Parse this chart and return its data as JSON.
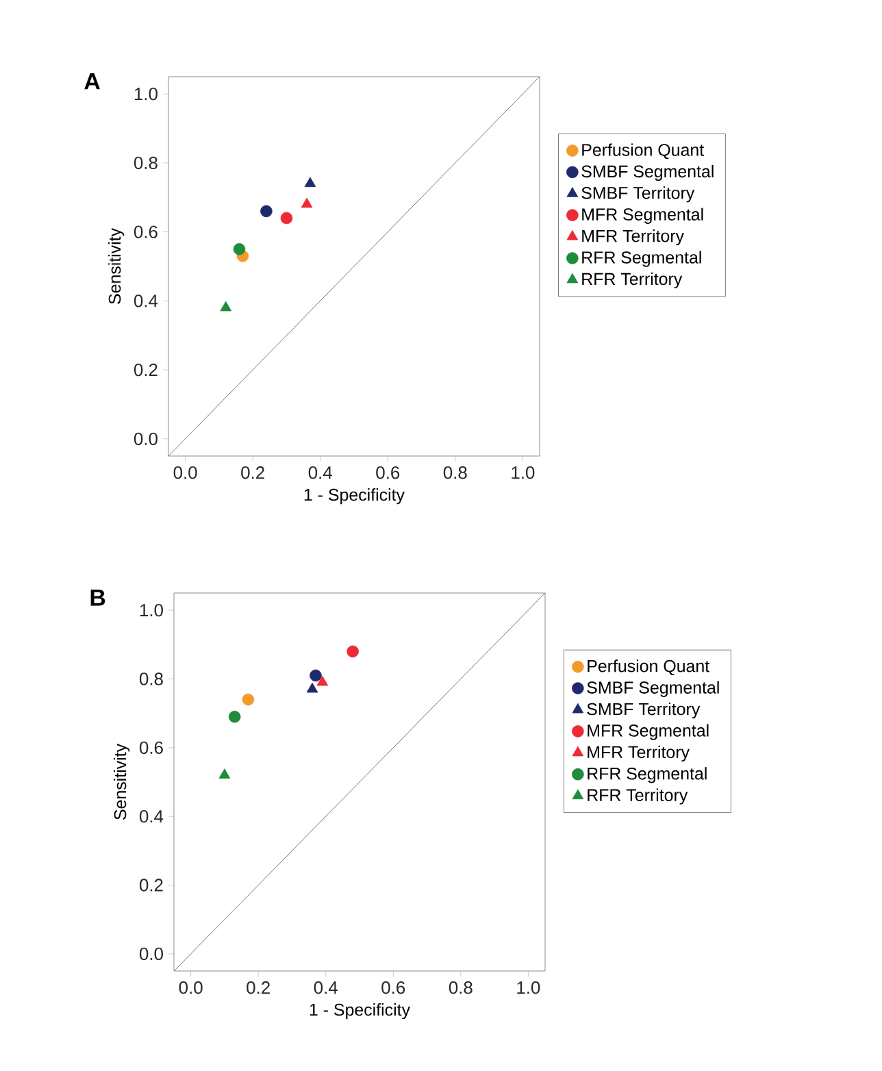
{
  "chart_data": [
    {
      "type": "scatter",
      "title": "A",
      "xlabel": "1 - Specificity",
      "ylabel": "Sensitivity",
      "xlim": [
        -0.05,
        1.05
      ],
      "ylim": [
        -0.05,
        1.05
      ],
      "xticks": [
        {
          "value": 0,
          "label": "0.0"
        },
        {
          "value": 0.2,
          "label": "0.2"
        },
        {
          "value": 0.4,
          "label": "0.4"
        },
        {
          "value": 0.6,
          "label": "0.6"
        },
        {
          "value": 0.8,
          "label": "0.8"
        },
        {
          "value": 1,
          "label": "1.0"
        }
      ],
      "yticks": [
        {
          "value": 0,
          "label": "0.0"
        },
        {
          "value": 0.2,
          "label": "0.2"
        },
        {
          "value": 0.4,
          "label": "0.4"
        },
        {
          "value": 0.6,
          "label": "0.6"
        },
        {
          "value": 0.8,
          "label": "0.8"
        },
        {
          "value": 1,
          "label": "1.0"
        }
      ],
      "legend": "right",
      "grid": false,
      "series": [
        {
          "name": "Perfusion Quant",
          "color": "#f39a2b",
          "marker": "circle",
          "x": [
            0.17
          ],
          "values": [
            0.53
          ]
        },
        {
          "name": "SMBF Segmental",
          "color": "#1f2a6e",
          "marker": "circle",
          "x": [
            0.24
          ],
          "values": [
            0.66
          ]
        },
        {
          "name": "SMBF Territory",
          "color": "#1f2a6e",
          "marker": "triangle",
          "x": [
            0.37
          ],
          "values": [
            0.74
          ]
        },
        {
          "name": "MFR Segmental",
          "color": "#ee2a36",
          "marker": "circle",
          "x": [
            0.3
          ],
          "values": [
            0.64
          ]
        },
        {
          "name": "MFR Territory",
          "color": "#ee2a36",
          "marker": "triangle",
          "x": [
            0.36
          ],
          "values": [
            0.68
          ]
        },
        {
          "name": "RFR Segmental",
          "color": "#1e8c3a",
          "marker": "circle",
          "x": [
            0.16
          ],
          "values": [
            0.55
          ]
        },
        {
          "name": "RFR Territory",
          "color": "#1e8c3a",
          "marker": "triangle",
          "x": [
            0.12
          ],
          "values": [
            0.38
          ]
        },
        {
          "type": "line",
          "color": "#555555",
          "marker": "none",
          "x": [
            -0.05,
            1.05
          ],
          "values": [
            -0.05,
            1.05
          ]
        }
      ]
    },
    {
      "type": "scatter",
      "title": "B",
      "xlabel": "1 - Specificity",
      "ylabel": "Sensitivity",
      "xlim": [
        -0.05,
        1.05
      ],
      "ylim": [
        -0.05,
        1.05
      ],
      "xticks": [
        {
          "value": 0,
          "label": "0.0"
        },
        {
          "value": 0.2,
          "label": "0.2"
        },
        {
          "value": 0.4,
          "label": "0.4"
        },
        {
          "value": 0.6,
          "label": "0.6"
        },
        {
          "value": 0.8,
          "label": "0.8"
        },
        {
          "value": 1,
          "label": "1.0"
        }
      ],
      "yticks": [
        {
          "value": 0,
          "label": "0.0"
        },
        {
          "value": 0.2,
          "label": "0.2"
        },
        {
          "value": 0.4,
          "label": "0.4"
        },
        {
          "value": 0.6,
          "label": "0.6"
        },
        {
          "value": 0.8,
          "label": "0.8"
        },
        {
          "value": 1,
          "label": "1.0"
        }
      ],
      "legend": "right",
      "grid": false,
      "series": [
        {
          "name": "Perfusion Quant",
          "color": "#f39a2b",
          "marker": "circle",
          "x": [
            0.17
          ],
          "values": [
            0.74
          ]
        },
        {
          "name": "SMBF Segmental",
          "color": "#1f2a6e",
          "marker": "circle",
          "x": [
            0.37
          ],
          "values": [
            0.81
          ]
        },
        {
          "name": "SMBF Territory",
          "color": "#1f2a6e",
          "marker": "triangle",
          "x": [
            0.36
          ],
          "values": [
            0.77
          ]
        },
        {
          "name": "MFR Segmental",
          "color": "#ee2a36",
          "marker": "circle",
          "x": [
            0.48
          ],
          "values": [
            0.88
          ]
        },
        {
          "name": "MFR Territory",
          "color": "#ee2a36",
          "marker": "triangle",
          "x": [
            0.39
          ],
          "values": [
            0.79
          ]
        },
        {
          "name": "RFR Segmental",
          "color": "#1e8c3a",
          "marker": "circle",
          "x": [
            0.13
          ],
          "values": [
            0.69
          ]
        },
        {
          "name": "RFR Territory",
          "color": "#1e8c3a",
          "marker": "triangle",
          "x": [
            0.1
          ],
          "values": [
            0.52
          ]
        },
        {
          "type": "line",
          "color": "#555555",
          "marker": "none",
          "x": [
            -0.05,
            1.05
          ],
          "values": [
            -0.05,
            1.05
          ]
        }
      ]
    }
  ]
}
